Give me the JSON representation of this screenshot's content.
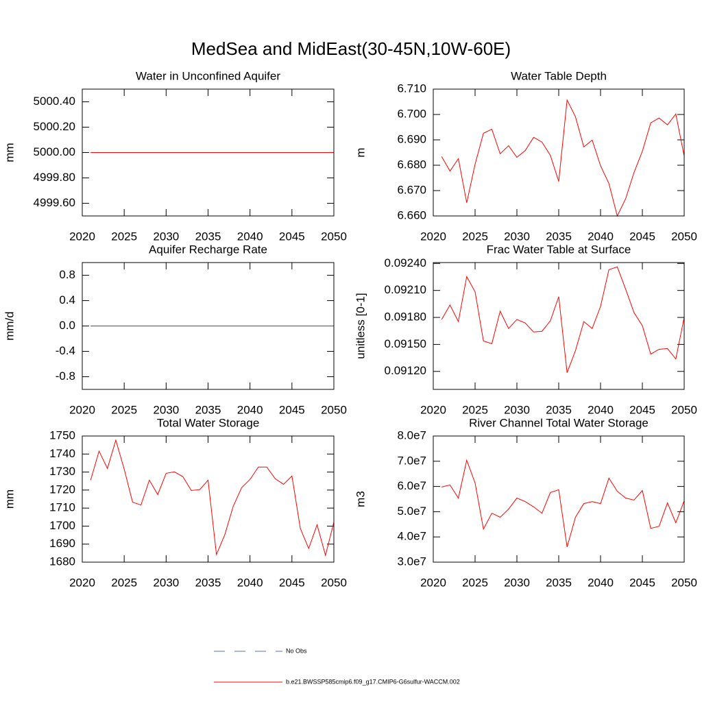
{
  "title": "MedSea and MidEast(30-45N,10W-60E)",
  "legend": [
    {
      "name": "No Obs",
      "color": "#5a6ab8",
      "dashed": true
    },
    {
      "name": "b.e21.BWSSP585cmip6.f09_g17.CMIP6-G6sulfur-WACCM.002",
      "color": "#ff0000",
      "dashed": false
    }
  ],
  "chart_data": [
    {
      "type": "line",
      "title": "Water in Unconfined Aquifer",
      "y_label": "mm",
      "x": [
        2021,
        2022,
        2023,
        2024,
        2025,
        2026,
        2027,
        2028,
        2029,
        2030,
        2031,
        2032,
        2033,
        2034,
        2035,
        2036,
        2037,
        2038,
        2039,
        2040,
        2041,
        2042,
        2043,
        2044,
        2045,
        2046,
        2047,
        2048,
        2049,
        2050
      ],
      "xlim": [
        2020,
        2050
      ],
      "xticks": [
        2020,
        2025,
        2030,
        2035,
        2040,
        2045,
        2050
      ],
      "ylim": [
        4999.5,
        5000.5
      ],
      "yticks": [
        {
          "value": 4999.6,
          "label": "4999.60"
        },
        {
          "value": 4999.8,
          "label": "4999.80"
        },
        {
          "value": 5000.0,
          "label": "5000.00"
        },
        {
          "value": 5000.2,
          "label": "5000.20"
        },
        {
          "value": 5000.4,
          "label": "5000.40"
        }
      ],
      "series": [
        {
          "color": "#ff0000",
          "values": [
            5000,
            5000,
            5000,
            5000,
            5000,
            5000,
            5000,
            5000,
            5000,
            5000,
            5000,
            5000,
            5000,
            5000,
            5000,
            5000,
            5000,
            5000,
            5000,
            5000,
            5000,
            5000,
            5000,
            5000,
            5000,
            5000,
            5000,
            5000,
            5000,
            5000
          ]
        }
      ]
    },
    {
      "type": "line",
      "title": "Water Table Depth",
      "y_label": "m",
      "x": [
        2021,
        2022,
        2023,
        2024,
        2025,
        2026,
        2027,
        2028,
        2029,
        2030,
        2031,
        2032,
        2033,
        2034,
        2035,
        2036,
        2037,
        2038,
        2039,
        2040,
        2041,
        2042,
        2043,
        2044,
        2045,
        2046,
        2047,
        2048,
        2049,
        2050
      ],
      "xlim": [
        2020,
        2050
      ],
      "xticks": [
        2020,
        2025,
        2030,
        2035,
        2040,
        2045,
        2050
      ],
      "ylim": [
        6.66,
        6.71
      ],
      "yticks": [
        {
          "value": 6.66,
          "label": "6.660"
        },
        {
          "value": 6.67,
          "label": "6.670"
        },
        {
          "value": 6.68,
          "label": "6.680"
        },
        {
          "value": 6.69,
          "label": "6.690"
        },
        {
          "value": 6.7,
          "label": "6.700"
        },
        {
          "value": 6.71,
          "label": "6.710"
        }
      ],
      "series": [
        {
          "color": "#ff0000",
          "values": [
            6.6834,
            6.6777,
            6.6826,
            6.6652,
            6.6804,
            6.6926,
            6.6942,
            6.6845,
            6.6877,
            6.6831,
            6.6858,
            6.691,
            6.6891,
            6.6839,
            6.6736,
            6.7057,
            6.6991,
            6.6872,
            6.6899,
            6.6798,
            6.6728,
            6.66,
            6.6668,
            6.6771,
            6.6855,
            6.6967,
            6.6986,
            6.6959,
            6.7002,
            6.6836
          ]
        }
      ]
    },
    {
      "type": "line",
      "title": "Aquifer Recharge Rate",
      "y_label": "mm/d",
      "x": [
        2021,
        2022,
        2023,
        2024,
        2025,
        2026,
        2027,
        2028,
        2029,
        2030,
        2031,
        2032,
        2033,
        2034,
        2035,
        2036,
        2037,
        2038,
        2039,
        2040,
        2041,
        2042,
        2043,
        2044,
        2045,
        2046,
        2047,
        2048,
        2049,
        2050
      ],
      "xlim": [
        2020,
        2050
      ],
      "xticks": [
        2020,
        2025,
        2030,
        2035,
        2040,
        2045,
        2050
      ],
      "ylim": [
        -1.0,
        1.0
      ],
      "yticks": [
        -0.8,
        -0.4,
        {
          "value": 0,
          "label": "0.0"
        },
        0.4,
        0.8
      ],
      "series": [
        {
          "color": "#ff0000",
          "values": [
            0,
            0,
            0,
            0,
            0,
            0,
            0,
            0,
            0,
            0,
            0,
            0,
            0,
            0,
            0,
            0,
            0,
            0,
            0,
            0,
            0,
            0,
            0,
            0,
            0,
            0,
            0,
            0,
            0,
            0
          ]
        }
      ]
    },
    {
      "type": "line",
      "title": "Frac Water Table at Surface",
      "y_label": "unitless [0-1]",
      "x": [
        2021,
        2022,
        2023,
        2024,
        2025,
        2026,
        2027,
        2028,
        2029,
        2030,
        2031,
        2032,
        2033,
        2034,
        2035,
        2036,
        2037,
        2038,
        2039,
        2040,
        2041,
        2042,
        2043,
        2044,
        2045,
        2046,
        2047,
        2048,
        2049,
        2050
      ],
      "xlim": [
        2020,
        2050
      ],
      "xticks": [
        2020,
        2025,
        2030,
        2035,
        2040,
        2045,
        2050
      ],
      "ylim": [
        0.091,
        0.09241
      ],
      "yticks": [
        {
          "value": 0.0912,
          "label": "0.09120"
        },
        {
          "value": 0.0915,
          "label": "0.09150"
        },
        {
          "value": 0.0918,
          "label": "0.09180"
        },
        {
          "value": 0.0921,
          "label": "0.09210"
        },
        {
          "value": 0.0924,
          "label": "0.09240"
        }
      ],
      "series": [
        {
          "color": "#ff0000",
          "values": [
            0.091777,
            0.091938,
            0.091754,
            0.092254,
            0.092085,
            0.091538,
            0.091508,
            0.091869,
            0.091677,
            0.091777,
            0.091738,
            0.091638,
            0.091646,
            0.091762,
            0.092031,
            0.091185,
            0.091431,
            0.091754,
            0.091677,
            0.091923,
            0.092331,
            0.092362,
            0.092115,
            0.091854,
            0.091708,
            0.091392,
            0.091446,
            0.091454,
            0.091338,
            0.0918
          ]
        }
      ]
    },
    {
      "type": "line",
      "title": "Total Water Storage",
      "y_label": "mm",
      "x": [
        2021,
        2022,
        2023,
        2024,
        2025,
        2026,
        2027,
        2028,
        2029,
        2030,
        2031,
        2032,
        2033,
        2034,
        2035,
        2036,
        2037,
        2038,
        2039,
        2040,
        2041,
        2042,
        2043,
        2044,
        2045,
        2046,
        2047,
        2048,
        2049,
        2050
      ],
      "xlim": [
        2020,
        2050
      ],
      "xticks": [
        2020,
        2025,
        2030,
        2035,
        2040,
        2045,
        2050
      ],
      "ylim": [
        1680,
        1750
      ],
      "yticks": [
        1680,
        1690,
        1700,
        1710,
        1720,
        1730,
        1740,
        1750
      ],
      "series": [
        {
          "color": "#ff0000",
          "values": [
            1725.5,
            1741.6,
            1732,
            1747.7,
            1731.6,
            1713.3,
            1711.7,
            1725.5,
            1717.5,
            1729.3,
            1730.1,
            1727.4,
            1719.8,
            1720.2,
            1725.5,
            1684.2,
            1695.3,
            1711,
            1721.3,
            1725.9,
            1732.8,
            1732.8,
            1726.3,
            1723.2,
            1727.8,
            1698.7,
            1687.6,
            1700.7,
            1683.8,
            1702.2
          ]
        }
      ]
    },
    {
      "type": "line",
      "title": "River Channel Total Water Storage",
      "y_label": "m3",
      "x": [
        2021,
        2022,
        2023,
        2024,
        2025,
        2026,
        2027,
        2028,
        2029,
        2030,
        2031,
        2032,
        2033,
        2034,
        2035,
        2036,
        2037,
        2038,
        2039,
        2040,
        2041,
        2042,
        2043,
        2044,
        2045,
        2046,
        2047,
        2048,
        2049,
        2050
      ],
      "xlim": [
        2020,
        2050
      ],
      "xticks": [
        2020,
        2025,
        2030,
        2035,
        2040,
        2045,
        2050
      ],
      "ylim": [
        30000000,
        80000000
      ],
      "yticks": [
        {
          "value": 30000000,
          "label": "3.0e7"
        },
        {
          "value": 40000000,
          "label": "4.0e7"
        },
        {
          "value": 50000000,
          "label": "5.0e7"
        },
        {
          "value": 60000000,
          "label": "6.0e7"
        },
        {
          "value": 70000000,
          "label": "7.0e7"
        },
        {
          "value": 80000000,
          "label": "8.0e7"
        }
      ],
      "series": [
        {
          "color": "#ff0000",
          "values": [
            59800000,
            60600000,
            55400000,
            70400000,
            61400000,
            43100000,
            49400000,
            47800000,
            51000000,
            55400000,
            54000000,
            51900000,
            49400000,
            57600000,
            58700000,
            36000000,
            47800000,
            53200000,
            54000000,
            53200000,
            63300000,
            58100000,
            55400000,
            54600000,
            58400000,
            43400000,
            44200000,
            53500000,
            45600000,
            54300000
          ]
        }
      ]
    }
  ]
}
